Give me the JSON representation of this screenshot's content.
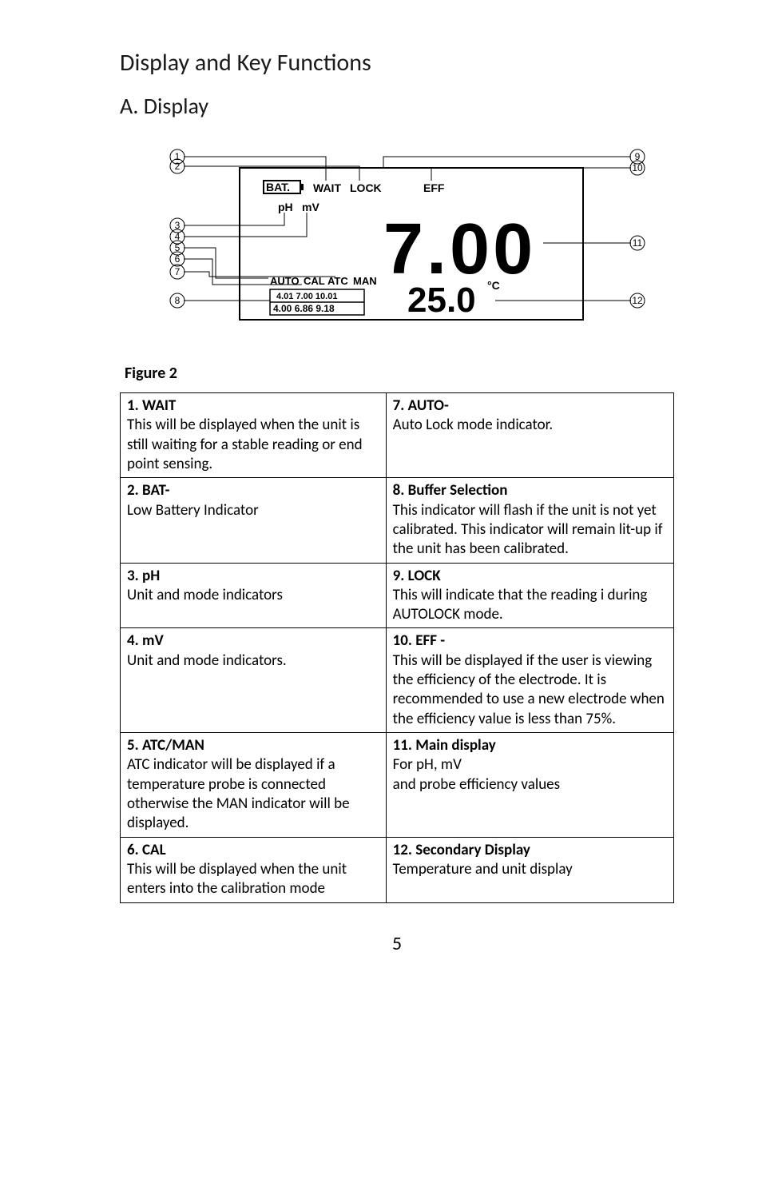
{
  "headings": {
    "section": "Display and Key Functions",
    "subsection": "A. Display"
  },
  "figure": {
    "label": "Figure 2",
    "lcd": {
      "topRow": {
        "bat": "BAT.",
        "wait": "WAIT",
        "lock": "LOCK",
        "eff": "EFF"
      },
      "units": {
        "ph": "pH",
        "mv": "mV"
      },
      "main": "7.00",
      "modeRow": {
        "auto": "AUTO",
        "cal": "CAL",
        "atc": "ATC",
        "man": "MAN"
      },
      "secondary": "25.0",
      "degC": "°C",
      "bufRow1": "4.01 7.00 10.01",
      "bufRow2": "4.00 6.86 9.18"
    },
    "callouts": [
      "1",
      "2",
      "3",
      "4",
      "5",
      "6",
      "7",
      "8",
      "9",
      "10",
      "11",
      "12"
    ]
  },
  "table": {
    "rows": [
      {
        "leftTitle": "1. WAIT",
        "leftBody": "This will be displayed when the unit is still waiting for a stable reading or end point sensing.",
        "rightTitle": "7. AUTO-",
        "rightBody": "Auto Lock mode indicator."
      },
      {
        "leftTitle": "2. BAT-",
        "leftBody": "Low Battery Indicator",
        "rightTitle": "8. Buffer Selection",
        "rightBody": "This indicator will flash if the unit is not yet calibrated. This indicator will remain lit-up if the unit has been calibrated."
      },
      {
        "leftTitle": "3. pH",
        "leftBody": "Unit and mode indicators",
        "rightTitle": "9. LOCK",
        "rightBody": "This will indicate that the reading i during AUTOLOCK mode."
      },
      {
        "leftTitle": "4. mV",
        "leftBody": "Unit and mode indicators.",
        "rightTitle": "10. EFF -",
        "rightBody": "This will be displayed if the user is viewing the efficiency of the electrode. It is recommended to use a new electrode when the efficiency value is less than 75%."
      },
      {
        "leftTitle": "5. ATC/MAN",
        "leftBody": "ATC indicator will be displayed if a temperature probe is connected otherwise the MAN indicator will be displayed.",
        "rightTitle": "11. Main display",
        "rightBody": " For pH, mV\nand probe efficiency values"
      },
      {
        "leftTitle": "6. CAL",
        "leftBody": "This will be displayed when the unit enters into the calibration mode",
        "rightTitle": "12. Secondary Display",
        "rightBody": "Temperature and unit display"
      }
    ]
  },
  "pageNumber": "5",
  "style": {
    "stroke": "#000000",
    "fill": "#000000",
    "bg": "#ffffff"
  }
}
